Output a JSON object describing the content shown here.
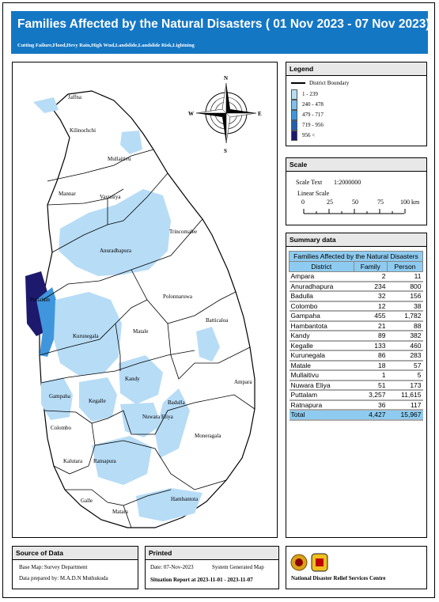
{
  "header": {
    "title": "Families Affected by the Natural Disasters ( 01 Nov 2023 - 07 Nov 2023)",
    "subtitle": "Cutting Failure,Flood,Hevy Rain,High Wnd,Landslide,Landslide Risk,Lightning"
  },
  "map": {
    "district_labels": [
      "Jaffna",
      "Kilinochchi",
      "Mullaitivu",
      "Mannar",
      "Vavuniya",
      "Trincomalee",
      "Anuradhapura",
      "Polonnaruwa",
      "Puttalam",
      "Batticaloa",
      "Kurunegala",
      "Matale",
      "Kandy",
      "Ampara",
      "Gampaha",
      "Kegalle",
      "Badulla",
      "Nuwara Eliya",
      "Colombo",
      "Moneragala",
      "Kalutara",
      "Ratnapura",
      "Galle",
      "Matara",
      "Hambantota"
    ],
    "compass": {
      "n": "N",
      "e": "E",
      "s": "S",
      "w": "W"
    }
  },
  "legend": {
    "title": "Legend",
    "boundary_label": "District Boundary",
    "classes": [
      {
        "label": "1 - 239",
        "color": "#b7dcf6"
      },
      {
        "label": "240 - 478",
        "color": "#7fbff0"
      },
      {
        "label": "479 - 717",
        "color": "#3f96dc"
      },
      {
        "label": "719 - 956",
        "color": "#1f5fb0"
      },
      {
        "label": "956 <",
        "color": "#1d1a6e"
      }
    ]
  },
  "scale": {
    "title": "Scale",
    "scale_text_label": "Scale Text",
    "scale_text_value": "1:2000000",
    "linear_label": "Linear Scale",
    "ticks": [
      "0",
      "25",
      "50",
      "75",
      "100 km"
    ]
  },
  "summary": {
    "title": "Summary data",
    "table_title": "Families Affected by the Natural Disasters",
    "columns": [
      "District",
      "Family",
      "Person"
    ],
    "rows": [
      {
        "district": "Ampara",
        "family": "2",
        "person": "11"
      },
      {
        "district": "Anuradhapura",
        "family": "234",
        "person": "800"
      },
      {
        "district": "Badulla",
        "family": "32",
        "person": "156"
      },
      {
        "district": "Colombo",
        "family": "12",
        "person": "38"
      },
      {
        "district": "Gampaha",
        "family": "455",
        "person": "1,782"
      },
      {
        "district": "Hambantota",
        "family": "21",
        "person": "88"
      },
      {
        "district": "Kandy",
        "family": "89",
        "person": "382"
      },
      {
        "district": "Kegalle",
        "family": "133",
        "person": "460"
      },
      {
        "district": "Kurunegala",
        "family": "86",
        "person": "283"
      },
      {
        "district": "Matale",
        "family": "18",
        "person": "57"
      },
      {
        "district": "Mullaitivu",
        "family": "1",
        "person": "5"
      },
      {
        "district": "Nuwara Eliya",
        "family": "51",
        "person": "173"
      },
      {
        "district": "Puttalam",
        "family": "3,257",
        "person": "11,615"
      },
      {
        "district": "Ratnapura",
        "family": "36",
        "person": "117"
      }
    ],
    "total": {
      "district": "Total",
      "family": "4,427",
      "person": "15,967"
    }
  },
  "source": {
    "title": "Source of Data",
    "base_map": "Base Map: Survey Department",
    "prepared": "Data prepared by: M.A.D.N Muthukuda"
  },
  "printed": {
    "title": "Printed",
    "date": "Date: 07-Nov-2023",
    "generated": "System Generated Map",
    "report": "Situation Report at 2023-11-01  -  2023-11-07"
  },
  "org": {
    "name": "National Disaster Relief Services Centre"
  }
}
